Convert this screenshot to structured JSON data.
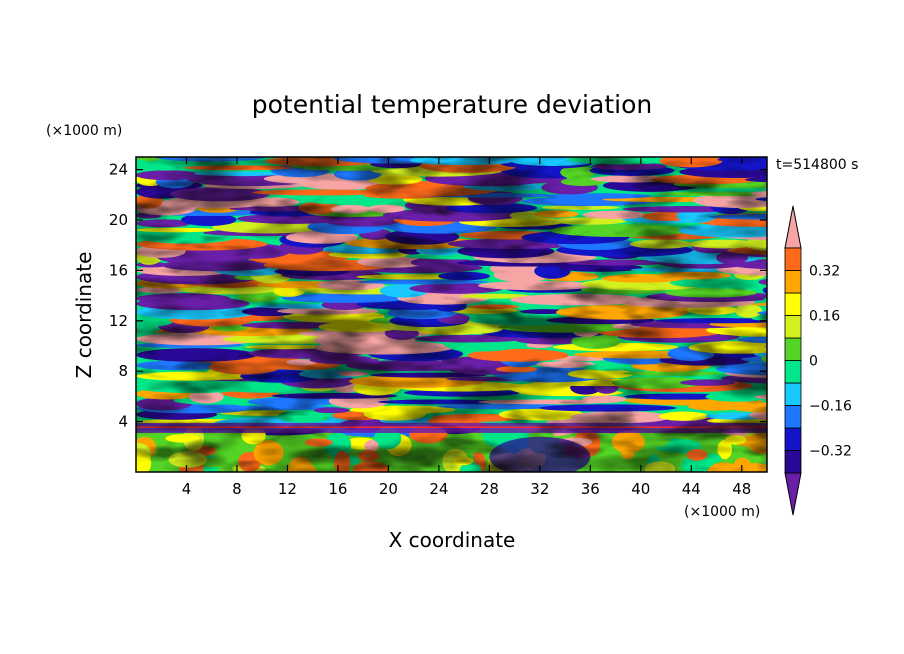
{
  "chart_data": {
    "type": "heatmap",
    "title": "potential temperature deviation",
    "xlabel": "X coordinate",
    "ylabel": "Z coordinate",
    "x_unit": "(×1000 m)",
    "y_unit": "(×1000 m)",
    "time_label": "t=514800 s",
    "xlim": [
      0,
      50
    ],
    "ylim": [
      0,
      25
    ],
    "x_ticks": [
      4,
      8,
      12,
      16,
      20,
      24,
      28,
      32,
      36,
      40,
      44,
      48
    ],
    "y_ticks": [
      4,
      8,
      12,
      16,
      20,
      24
    ],
    "colorbar": {
      "levels": [
        -0.4,
        -0.32,
        -0.24,
        -0.16,
        -0.08,
        0,
        0.08,
        0.16,
        0.24,
        0.32,
        0.4
      ],
      "tick_values": [
        0.32,
        0.16,
        0,
        -0.16,
        -0.32
      ],
      "tick_labels": [
        "0.32",
        "0.16",
        "0",
        "−0.16",
        "−0.32"
      ],
      "colors": [
        "#6a1fa8",
        "#2a0896",
        "#1414c8",
        "#1e78ff",
        "#18c8ff",
        "#00e688",
        "#54d424",
        "#d2f01e",
        "#ffff00",
        "#ffa600",
        "#ff6a1a",
        "#ff2a2a",
        "#f7a4a4"
      ],
      "extend": "both"
    }
  }
}
